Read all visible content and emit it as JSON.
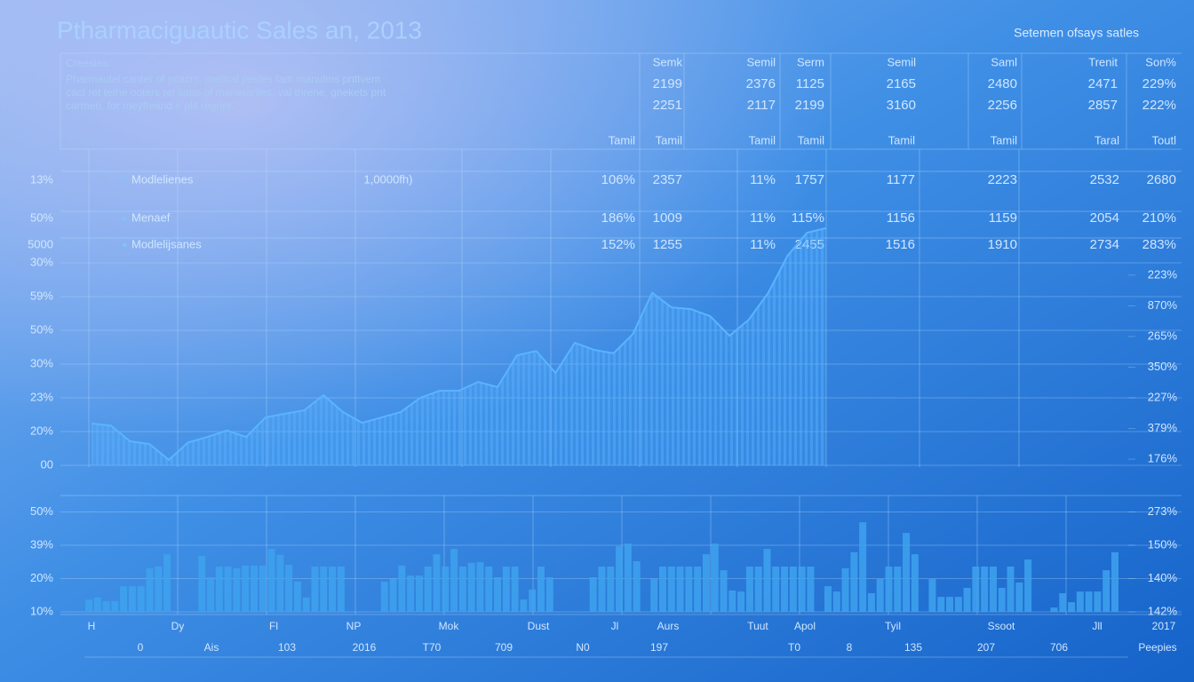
{
  "header": {
    "title": "Ptharmaciguautic Sales an, 2013",
    "subtitle": "Setemen ofsays satles",
    "caption": "Creesies:",
    "description": [
      "Pharmautel canter of pcacrs. metical pesles fam manulms pnttvem",
      "cact ret tethe ooters rel sane of menerarties, val threne, gnekets pnt",
      "carmen, for meyfteand ir plit regrier."
    ]
  },
  "summary_table": {
    "columns": [
      "Semk",
      "Semil",
      "Serm",
      "Semil",
      "Saml",
      "Trenit",
      "Son%"
    ],
    "rows": [
      [
        "2199",
        "2376",
        "1125",
        "2165",
        "2480",
        "2471",
        "229%"
      ],
      [
        "2251",
        "2117",
        "2199",
        "3160",
        "2256",
        "2857",
        "222%"
      ]
    ],
    "totals": [
      "Tamil",
      "Tamil",
      "Tamil",
      "Tamil",
      "Tamil",
      "Tamil",
      "Taral",
      "Toutl"
    ]
  },
  "metrics_table": {
    "note": "1,0000fh)",
    "rows": [
      {
        "side": "13%",
        "label": "Modlelienes",
        "cells": [
          "106%",
          "2357",
          "11%",
          "1757",
          "1177",
          "2223",
          "2532",
          "2680"
        ]
      },
      {
        "side": "50%",
        "label": "Menaef",
        "cells": [
          "186%",
          "1009",
          "11%",
          "115%",
          "1156",
          "1159",
          "2054",
          "210%"
        ]
      },
      {
        "side": "5000",
        "label": "Modlelijsanes",
        "cells": [
          "152%",
          "1255",
          "11%",
          "2455",
          "1516",
          "1910",
          "2734",
          "283%"
        ]
      }
    ]
  },
  "chart_data": [
    {
      "type": "area",
      "color": "#5ab4ff",
      "values": [
        1.24,
        1.18,
        0.71,
        0.63,
        0.16,
        0.68,
        0.84,
        1.03,
        0.84,
        1.42,
        1.53,
        1.63,
        2.08,
        1.58,
        1.26,
        1.42,
        1.58,
        2.0,
        2.21,
        2.21,
        2.47,
        2.32,
        3.26,
        3.39,
        2.74,
        3.63,
        3.42,
        3.32,
        3.89,
        5.11,
        4.68,
        4.63,
        4.42,
        3.84,
        4.32,
        5.11,
        6.21,
        6.89,
        7.03
      ],
      "ylim": [
        0,
        7
      ],
      "yticks": [
        {
          "value": 0,
          "label": "00"
        },
        {
          "value": 1,
          "label": "20%"
        },
        {
          "value": 2,
          "label": "23%"
        },
        {
          "value": 3,
          "label": "30%"
        },
        {
          "value": 4,
          "label": "50%"
        },
        {
          "value": 5,
          "label": "59%"
        },
        {
          "value": 6,
          "label": "30%"
        }
      ],
      "y2lim": [
        -0.2,
        7.5
      ],
      "y2ticks": [
        {
          "value": 0,
          "label": "176%"
        },
        {
          "value": 1,
          "label": "379%"
        },
        {
          "value": 2,
          "label": "227%"
        },
        {
          "value": 3,
          "label": "350%"
        },
        {
          "value": 4,
          "label": "265%"
        },
        {
          "value": 5,
          "label": "870%"
        },
        {
          "value": 6,
          "label": "223%"
        }
      ],
      "grid": true
    },
    {
      "type": "bar",
      "color": "#3ea2ee",
      "values": [
        0.37,
        0.43,
        0.32,
        0.32,
        0.77,
        0.77,
        0.77,
        1.31,
        1.36,
        1.73,
        null,
        null,
        null,
        1.68,
        1.04,
        1.36,
        1.36,
        1.31,
        1.39,
        1.39,
        1.39,
        1.89,
        1.71,
        1.41,
        0.91,
        0.43,
        1.36,
        1.36,
        1.36,
        1.36,
        null,
        null,
        null,
        null,
        0.91,
        0.99,
        1.39,
        1.09,
        1.09,
        1.36,
        1.73,
        1.36,
        1.89,
        1.36,
        1.47,
        1.49,
        1.36,
        1.04,
        1.36,
        1.36,
        0.37,
        0.67,
        1.36,
        1.04,
        null,
        null,
        null,
        null,
        1.04,
        1.36,
        1.36,
        1.97,
        2.05,
        1.52,
        null,
        0.99,
        1.36,
        1.36,
        1.36,
        1.36,
        1.36,
        1.73,
        2.05,
        1.25,
        0.64,
        0.61,
        1.36,
        1.36,
        1.89,
        1.36,
        1.36,
        1.36,
        1.36,
        1.36,
        null,
        0.77,
        0.61,
        1.31,
        1.79,
        2.69,
        0.56,
        0.99,
        1.36,
        1.36,
        2.37,
        1.73,
        null,
        0.99,
        0.45,
        0.45,
        0.45,
        0.72,
        1.36,
        1.36,
        1.36,
        0.72,
        1.36,
        0.88,
        1.57,
        null,
        null,
        0.13,
        0.56,
        0.29,
        0.61,
        0.61,
        0.61,
        1.25,
        1.79
      ],
      "ylim": [
        0,
        3.2
      ],
      "yticks": [
        {
          "value": 0,
          "label": "10%"
        },
        {
          "value": 1,
          "label": "20%"
        },
        {
          "value": 2,
          "label": "39%"
        },
        {
          "value": 3,
          "label": "50%"
        }
      ],
      "y2lim": [
        0,
        3.2
      ],
      "y2ticks": [
        {
          "value": 0,
          "label": "142%"
        },
        {
          "value": 1,
          "label": "140%"
        },
        {
          "value": 2,
          "label": "150%"
        },
        {
          "value": 3,
          "label": "273%"
        }
      ],
      "x_labels": [
        [
          "H",
          "Dy",
          "Fl",
          "NP",
          "Mok",
          "Dust",
          "Jl",
          "Aurs",
          "Tuut",
          "Apol",
          "Tyil",
          "Ssoot",
          "Jll",
          "2017"
        ],
        [
          "0",
          "Ais",
          "103",
          "2016",
          "T70",
          "709",
          "N0",
          "197",
          "T0",
          "8",
          "135",
          "207",
          "706",
          "Peepies"
        ]
      ],
      "grid": true
    }
  ]
}
